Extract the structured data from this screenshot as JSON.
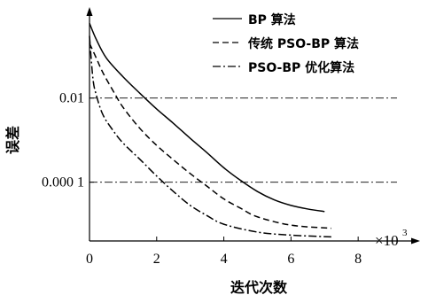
{
  "chart_data": {
    "type": "line",
    "title": "",
    "xlabel": "迭代次数",
    "ylabel": "误差",
    "x_unit_label": "×10",
    "x_unit_exponent": "3",
    "x_ticks": [
      "0",
      "2",
      "4",
      "6",
      "8"
    ],
    "xlim": [
      0,
      9.5
    ],
    "y_scale": "log",
    "y_tick_labels": [
      "0.01",
      "0.000 1"
    ],
    "y_tick_values": [
      0.01,
      0.0001
    ],
    "ylim": [
      4e-06,
      1.2
    ],
    "grid": false,
    "reference_lines": [
      {
        "y": 0.01,
        "style": "dash-dot"
      },
      {
        "y": 0.0001,
        "style": "dash-dot"
      }
    ],
    "legend": "top-right",
    "series": [
      {
        "name": "BP 算法",
        "style": "solid",
        "x": [
          0,
          0.2,
          0.5,
          1.0,
          1.5,
          2.0,
          2.5,
          3.0,
          3.5,
          4.0,
          4.5,
          5.0,
          5.5,
          6.0,
          6.5,
          7.0
        ],
        "y": [
          0.6,
          0.25,
          0.09,
          0.032,
          0.013,
          0.0055,
          0.0025,
          0.0011,
          0.0005,
          0.00022,
          0.00011,
          6e-05,
          3.8e-05,
          2.8e-05,
          2.3e-05,
          2e-05
        ]
      },
      {
        "name": "传统 PSO-BP 算法",
        "style": "dashed",
        "x": [
          0,
          0.2,
          0.4,
          0.7,
          1.0,
          1.5,
          2.0,
          2.5,
          3.0,
          3.5,
          4.0,
          4.5,
          5.0,
          6.0,
          7.2
        ],
        "y": [
          0.2,
          0.09,
          0.04,
          0.015,
          0.006,
          0.0019,
          0.00075,
          0.00034,
          0.00016,
          8e-05,
          4e-05,
          2.4e-05,
          1.5e-05,
          9.5e-06,
          8e-06
        ]
      },
      {
        "name": "PSO-BP 优化算法",
        "style": "dash-dot",
        "x": [
          0,
          0.1,
          0.2,
          0.4,
          0.7,
          1.0,
          1.5,
          2.0,
          2.5,
          3.0,
          3.5,
          4.0,
          5.0,
          6.0,
          7.2
        ],
        "y": [
          0.3,
          0.03,
          0.012,
          0.004,
          0.0017,
          0.00085,
          0.00035,
          0.00014,
          6e-05,
          2.8e-05,
          1.6e-05,
          1e-05,
          6.5e-06,
          5.5e-06,
          5e-06
        ]
      }
    ]
  }
}
